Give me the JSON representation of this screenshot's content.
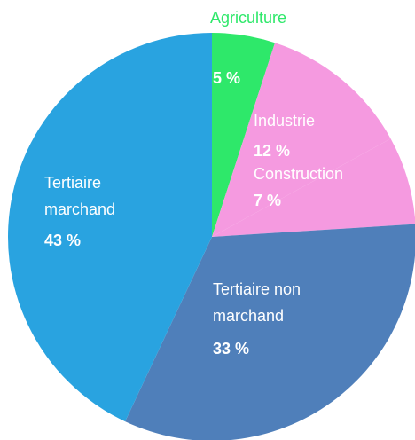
{
  "chart_data": {
    "type": "pie",
    "categories": [
      "Agriculture",
      "Industrie",
      "Construction",
      "Tertiaire non marchand",
      "Tertiaire marchand"
    ],
    "values": [
      5,
      12,
      7,
      33,
      43
    ],
    "value_labels": [
      "5 %",
      "12 %",
      "7 %",
      "33 %",
      "43 %"
    ],
    "colors": [
      "#2ee86a",
      "#f59ae0",
      "#f59ae0",
      "#4f7fba",
      "#29a3e0"
    ]
  }
}
